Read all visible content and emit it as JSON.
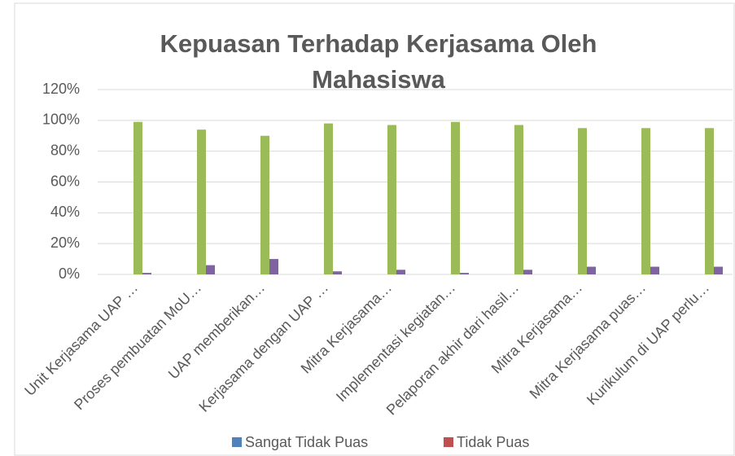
{
  "chart_data": {
    "type": "bar",
    "title": "Kepuasan Terhadap Kerjasama Oleh Mahasiswa",
    "categories": [
      "Unit Kerjasama UAP …",
      "Proses pembuatan MoU…",
      "UAP memberikan…",
      "Kerjasama dengan UAP …",
      "Mitra Kerjasama…",
      "Implementasi kegiatan…",
      "Pelaporan akhir dari hasil…",
      "Mitra Kerjasama…",
      "Mitra Kerjasama puas…",
      "Kurikulum di UAP perlu…"
    ],
    "series": [
      {
        "name": "Sangat Tidak Puas",
        "color": "#4f81bd",
        "values": [
          0,
          0,
          0,
          0,
          0,
          0,
          0,
          0,
          0,
          0
        ]
      },
      {
        "name": "Tidak Puas",
        "color": "#c0504d",
        "values": [
          0,
          0,
          0,
          0,
          0,
          0,
          0,
          0,
          0,
          0
        ]
      },
      {
        "color": "#9bbb59",
        "values": [
          99,
          94,
          90,
          98,
          97,
          99,
          97,
          95,
          95,
          95
        ]
      },
      {
        "color": "#8064a2",
        "values": [
          1,
          6,
          10,
          2,
          3,
          1,
          3,
          5,
          5,
          5
        ]
      }
    ],
    "ylim": [
      0,
      120
    ],
    "yticks": [
      {
        "value": 0,
        "label": "0%"
      },
      {
        "value": 20,
        "label": "20%"
      },
      {
        "value": 40,
        "label": "40%"
      },
      {
        "value": 60,
        "label": "60%"
      },
      {
        "value": 80,
        "label": "80%"
      },
      {
        "value": 100,
        "label": "100%"
      },
      {
        "value": 120,
        "label": "120%"
      }
    ],
    "grid": true
  }
}
